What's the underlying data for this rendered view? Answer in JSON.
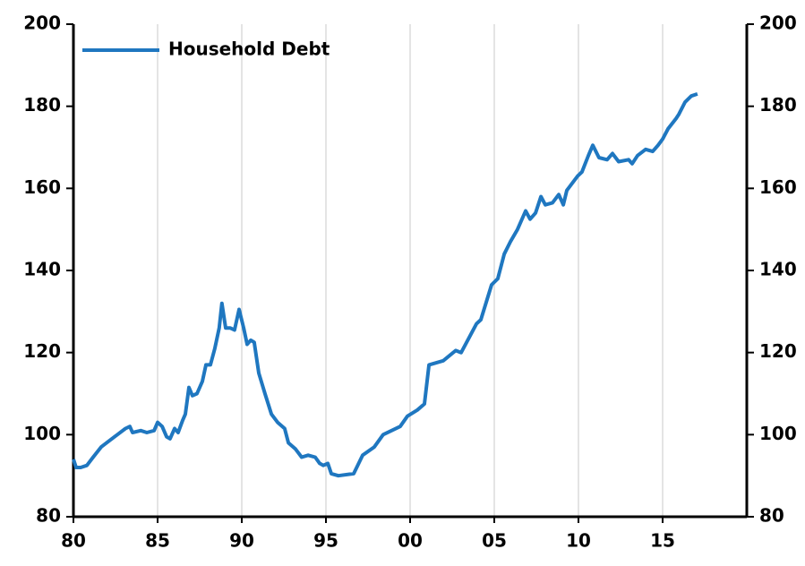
{
  "chart_data": {
    "type": "line",
    "series": [
      {
        "name": "Household Debt",
        "color": "#1f77c0",
        "x": [
          1980.0,
          1980.16,
          1980.43,
          1980.8,
          1981.17,
          1981.65,
          1982.13,
          1982.61,
          1983.09,
          1983.35,
          1983.51,
          1984.0,
          1984.36,
          1984.79,
          1985.0,
          1985.27,
          1985.53,
          1985.74,
          1986.01,
          1986.22,
          1986.49,
          1986.65,
          1986.86,
          1987.07,
          1987.34,
          1987.66,
          1987.87,
          1988.14,
          1988.4,
          1988.66,
          1988.82,
          1989.04,
          1989.31,
          1989.57,
          1989.84,
          1990.11,
          1990.32,
          1990.53,
          1990.74,
          1991.01,
          1991.38,
          1991.76,
          1992.13,
          1992.55,
          1992.77,
          1993.19,
          1993.56,
          1993.94,
          1994.36,
          1994.63,
          1994.84,
          1995.11,
          1995.32,
          1995.74,
          1996.65,
          1997.18,
          1997.87,
          1998.4,
          1999.41,
          1999.84,
          2000.43,
          2000.85,
          2001.12,
          2001.97,
          2002.71,
          2003.03,
          2003.94,
          2004.2,
          2004.84,
          2005.21,
          2005.59,
          2005.96,
          2006.38,
          2006.86,
          2007.13,
          2007.45,
          2007.77,
          2008.03,
          2008.46,
          2008.83,
          2009.1,
          2009.31,
          2009.95,
          2010.21,
          2010.59,
          2010.85,
          2011.22,
          2011.7,
          2012.02,
          2012.39,
          2012.98,
          2013.19,
          2013.51,
          2013.99,
          2014.41,
          2014.73,
          2015.0,
          2015.32,
          2015.8,
          2015.96,
          2016.33,
          2016.7,
          2017.07
        ],
        "values": [
          94,
          92,
          92,
          92.5,
          94.5,
          97,
          98.5,
          100,
          101.5,
          102,
          100.5,
          101,
          100.5,
          101,
          103,
          102,
          99.5,
          99,
          101.5,
          100.5,
          103.5,
          105,
          111.5,
          109.5,
          110,
          113,
          117,
          117,
          121,
          126,
          132,
          126,
          126,
          125.5,
          130.5,
          126,
          122,
          123,
          122.5,
          115,
          110,
          105,
          103,
          101.5,
          98,
          96.5,
          94.5,
          95,
          94.5,
          93,
          92.5,
          93,
          90.5,
          90,
          90.5,
          95,
          97,
          100,
          102,
          104.5,
          106,
          107.5,
          117,
          118,
          120.5,
          120,
          127,
          128,
          136.5,
          138,
          144,
          147,
          150,
          154.5,
          152.5,
          154,
          158,
          156,
          156.5,
          158.5,
          156,
          159.5,
          163,
          164,
          168,
          170.5,
          167.5,
          167,
          168.5,
          166.5,
          167,
          166,
          168,
          169.5,
          169,
          170.5,
          172,
          174.5,
          177,
          178,
          181,
          182.5,
          183
        ]
      }
    ],
    "xlim": [
      1980,
      2020
    ],
    "xticks": [
      {
        "value": 1980,
        "label": "80"
      },
      {
        "value": 1985,
        "label": "85"
      },
      {
        "value": 1990,
        "label": "90"
      },
      {
        "value": 1995,
        "label": "95"
      },
      {
        "value": 2000,
        "label": "00"
      },
      {
        "value": 2005,
        "label": "05"
      },
      {
        "value": 2010,
        "label": "10"
      },
      {
        "value": 2015,
        "label": "15"
      }
    ],
    "ylim": [
      80,
      200
    ],
    "yticks": [
      80,
      100,
      120,
      140,
      160,
      180,
      200
    ],
    "y2lim": [
      80,
      200
    ],
    "y2ticks": [
      80,
      100,
      120,
      140,
      160,
      180,
      200
    ],
    "grid": true,
    "legend": "upper left"
  }
}
